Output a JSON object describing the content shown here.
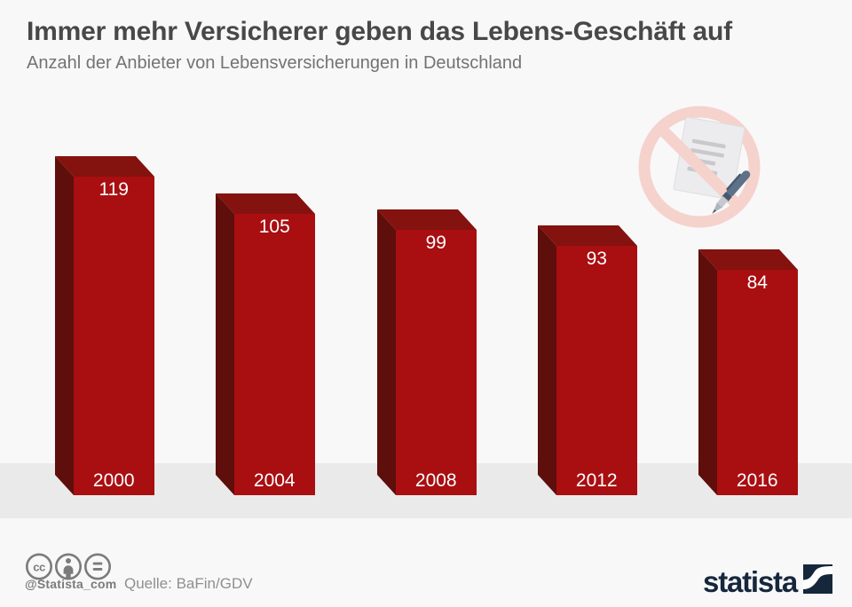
{
  "chart_data": {
    "type": "bar",
    "style": "3d-bars",
    "title": "Immer mehr Versicherer geben das Lebens-Geschäft auf",
    "subtitle": "Anzahl der Anbieter von Lebensversicherungen in Deutschland",
    "categories": [
      "2000",
      "2004",
      "2008",
      "2012",
      "2016"
    ],
    "values": [
      119,
      105,
      99,
      93,
      84
    ],
    "xlabel": "",
    "ylabel": "",
    "ylim": [
      0,
      119
    ],
    "grid": false,
    "value_labels_shown": true,
    "legend": "none"
  },
  "icons": {
    "top_right": "no-contract-icon"
  },
  "footer": {
    "license_icons": [
      "cc-icon",
      "attribution-icon",
      "equal-icon"
    ],
    "handle": "@Statista_com",
    "source": "Quelle: BaFin/GDV",
    "brand_text": "statista"
  },
  "colors": {
    "background": "#f8f8f9",
    "floor_band": "#eaeaeb",
    "title_text": "#484848",
    "subtitle_text": "#737373",
    "bar_front": "#a90e11",
    "bar_top": "#84120e",
    "bar_side": "#5e0e0b",
    "label_text": "#ffffff",
    "ban_ring": "#f6d2cd",
    "paper": "#ececee",
    "paper_edge": "#dedee0",
    "paper_line": "#c9c9cc",
    "pen_body": "#5d7288",
    "pen_dark": "#47596c",
    "pen_grip": "#c6cad0",
    "pen_metal": "#aeb6bd",
    "footer_gray": "#7b7b7b",
    "source_gray": "#8f8f8f",
    "brand_navy": "#16273c"
  }
}
